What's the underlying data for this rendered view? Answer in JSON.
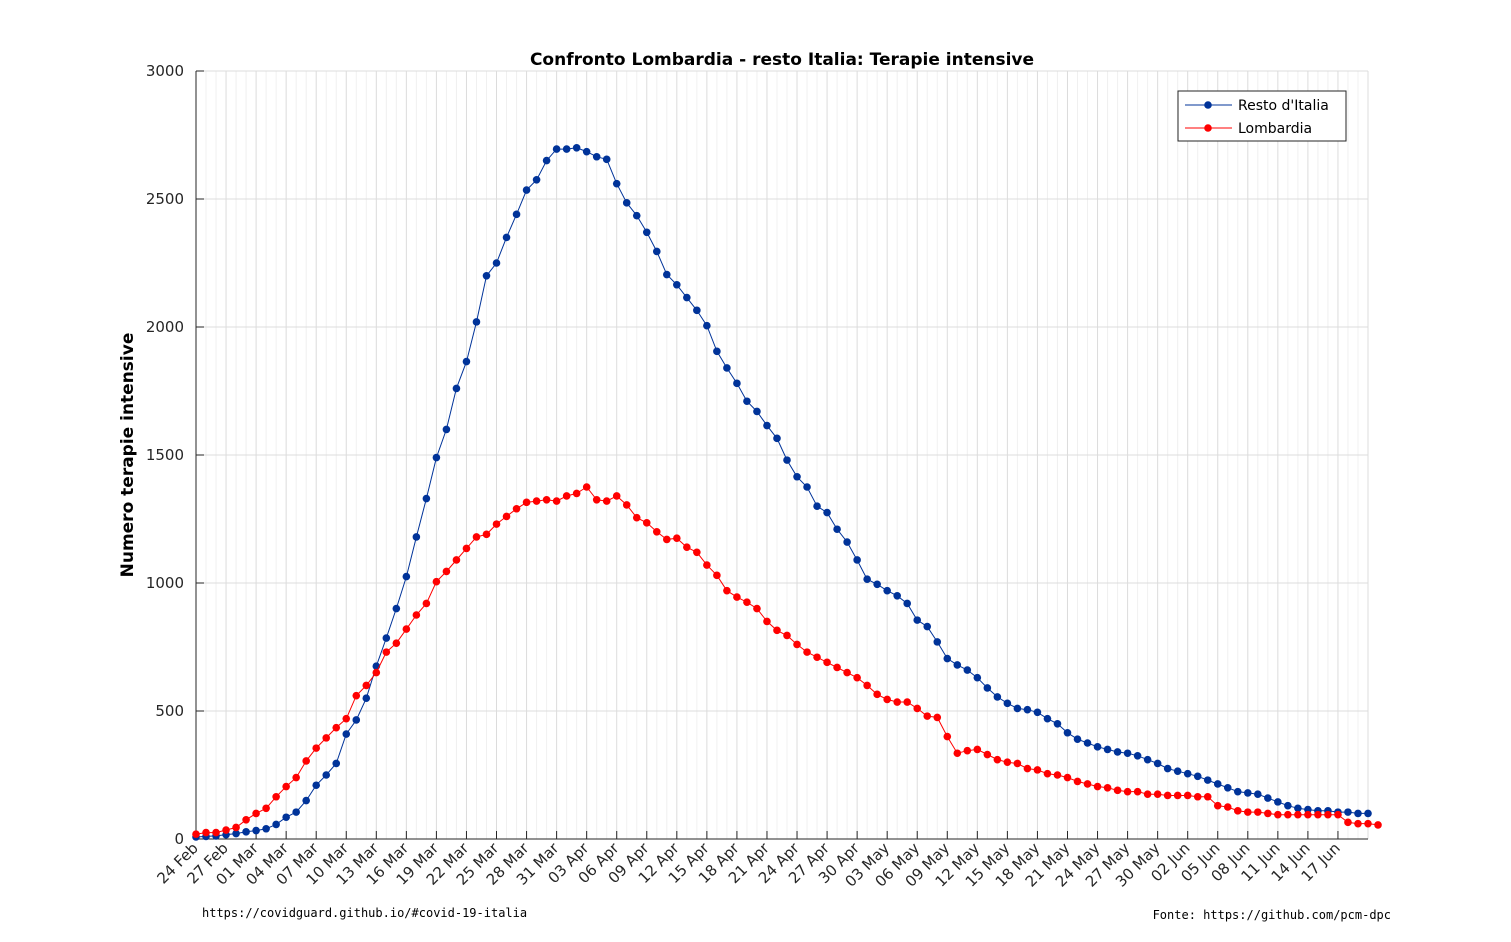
{
  "chart_data": {
    "type": "line",
    "title": "Confronto Lombardia - resto Italia: Terapie intensive",
    "xlabel": "",
    "ylabel": "Numero terapie intensive",
    "ylim": [
      0,
      3000
    ],
    "yticks": [
      0,
      500,
      1000,
      1500,
      2000,
      2500,
      3000
    ],
    "x_start": "24 Feb",
    "num_days": 118,
    "xtick_labels": [
      "24 Feb",
      "27 Feb",
      "01 Mar",
      "04 Mar",
      "07 Mar",
      "10 Mar",
      "13 Mar",
      "16 Mar",
      "19 Mar",
      "22 Mar",
      "25 Mar",
      "28 Mar",
      "31 Mar",
      "03 Apr",
      "06 Apr",
      "09 Apr",
      "12 Apr",
      "15 Apr",
      "18 Apr",
      "21 Apr",
      "24 Apr",
      "27 Apr",
      "30 Apr",
      "03 May",
      "06 May",
      "09 May",
      "12 May",
      "15 May",
      "18 May",
      "21 May",
      "24 May",
      "27 May",
      "30 May",
      "02 Jun",
      "05 Jun",
      "08 Jun",
      "11 Jun",
      "14 Jun",
      "17 Jun"
    ],
    "grid": true,
    "legend_position": "top-right",
    "series": [
      {
        "name": "Resto d'Italia",
        "color": "#003399",
        "values": [
          8,
          10,
          12,
          17,
          21,
          28,
          33,
          40,
          57,
          85,
          105,
          150,
          210,
          250,
          295,
          410,
          465,
          550,
          675,
          785,
          900,
          1025,
          1180,
          1330,
          1490,
          1600,
          1760,
          1865,
          2020,
          2200,
          2250,
          2350,
          2440,
          2535,
          2575,
          2650,
          2695,
          2695,
          2700,
          2685,
          2665,
          2655,
          2560,
          2485,
          2435,
          2370,
          2295,
          2205,
          2165,
          2115,
          2065,
          2005,
          1905,
          1840,
          1780,
          1710,
          1670,
          1615,
          1565,
          1480,
          1415,
          1375,
          1300,
          1275,
          1210,
          1160,
          1090,
          1015,
          995,
          970,
          950,
          920,
          855,
          830,
          770,
          705,
          680,
          660,
          630,
          590,
          555,
          530,
          510,
          505,
          495,
          470,
          450,
          415,
          390,
          375,
          360,
          350,
          340,
          335,
          325,
          310,
          295,
          275,
          265,
          255,
          245,
          230,
          215,
          200,
          185,
          180,
          175,
          160,
          145,
          130,
          120,
          115,
          110,
          110,
          105,
          105,
          100,
          100
        ]
      },
      {
        "name": "Lombardia",
        "color": "#ff0000",
        "values": [
          19,
          25,
          25,
          35,
          45,
          75,
          100,
          120,
          165,
          205,
          240,
          305,
          355,
          395,
          435,
          470,
          560,
          600,
          650,
          730,
          765,
          820,
          875,
          920,
          1005,
          1045,
          1090,
          1135,
          1180,
          1190,
          1230,
          1260,
          1290,
          1315,
          1320,
          1325,
          1320,
          1340,
          1350,
          1375,
          1325,
          1320,
          1340,
          1305,
          1255,
          1235,
          1200,
          1170,
          1175,
          1140,
          1120,
          1070,
          1030,
          970,
          945,
          925,
          900,
          850,
          815,
          795,
          760,
          730,
          710,
          690,
          670,
          650,
          630,
          600,
          565,
          545,
          535,
          535,
          510,
          480,
          475,
          400,
          335,
          345,
          350,
          330,
          310,
          300,
          295,
          275,
          270,
          255,
          250,
          240,
          225,
          215,
          205,
          200,
          190,
          185,
          185,
          175,
          175,
          170,
          170,
          170,
          165,
          165,
          130,
          125,
          110,
          105,
          105,
          100,
          95,
          95,
          95,
          95,
          95,
          95,
          95,
          65,
          60,
          60,
          55
        ]
      }
    ]
  },
  "footer": {
    "left": "https://covidguard.github.io/#covid-19-italia",
    "right": "Fonte: https://github.com/pcm-dpc"
  }
}
